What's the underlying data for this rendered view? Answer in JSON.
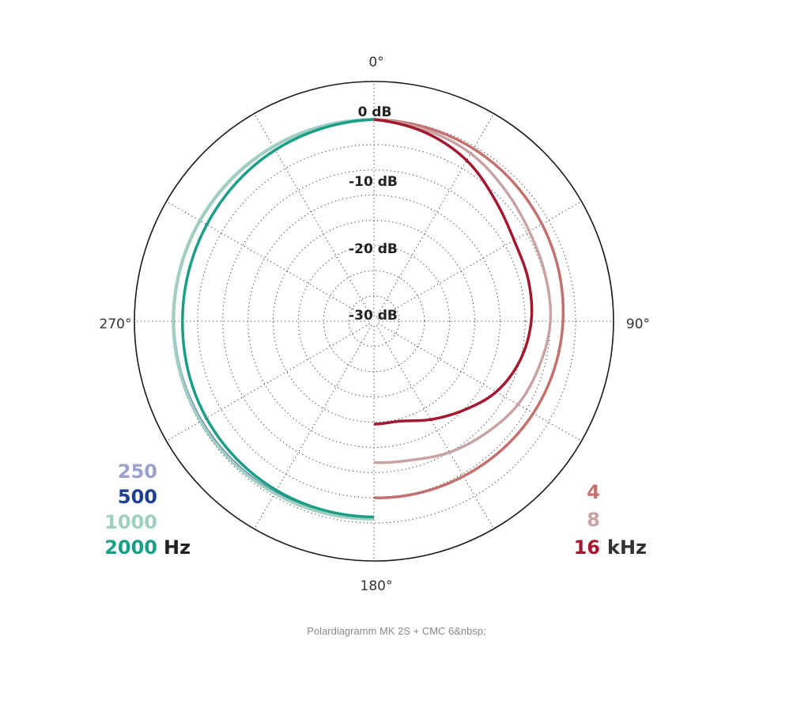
{
  "caption": "Polardiagramm MK 2S + CMC 6&nbsp;",
  "chart_data": {
    "type": "polar",
    "angle_labels": [
      "0°",
      "90°",
      "180°",
      "270°"
    ],
    "radial_labels": [
      "0 dB",
      "-10 dB",
      "-20 dB",
      "-30 dB"
    ],
    "rlim": [
      -40,
      0
    ],
    "grid": true,
    "legend_left": {
      "unit": "Hz",
      "entries": [
        {
          "label": "250",
          "color": "#9ba0cf"
        },
        {
          "label": "500",
          "color": "#1f3f8f"
        },
        {
          "label": "1000",
          "color": "#9fcfc0"
        },
        {
          "label": "2000",
          "color": "#1a9f86"
        }
      ]
    },
    "legend_right": {
      "unit": "kHz",
      "entries": [
        {
          "label": "4",
          "color": "#c4706f"
        },
        {
          "label": "8",
          "color": "#c9a3a3"
        },
        {
          "label": "16",
          "color": "#a3182f"
        }
      ]
    },
    "series": [
      {
        "name": "250",
        "color": "#9ba0cf",
        "width": 3,
        "side": "left",
        "points": [
          [
            180,
            -1.0
          ],
          [
            210,
            -0.8
          ],
          [
            240,
            -0.5
          ],
          [
            270,
            -0.3
          ],
          [
            300,
            -0.2
          ],
          [
            330,
            -0.1
          ],
          [
            360,
            0
          ]
        ]
      },
      {
        "name": "500",
        "color": "#1f3f8f",
        "width": 2.5,
        "side": "left",
        "points": [
          [
            180,
            -1.0
          ],
          [
            210,
            -0.8
          ],
          [
            240,
            -0.5
          ],
          [
            270,
            -0.3
          ],
          [
            300,
            -0.2
          ],
          [
            330,
            -0.1
          ],
          [
            360,
            0
          ]
        ]
      },
      {
        "name": "1000",
        "color": "#9fcfc0",
        "width": 4,
        "side": "left",
        "points": [
          [
            180,
            -0.8
          ],
          [
            210,
            -0.6
          ],
          [
            240,
            -0.3
          ],
          [
            270,
            -0.2
          ],
          [
            300,
            -0.1
          ],
          [
            330,
            0
          ],
          [
            360,
            0
          ]
        ]
      },
      {
        "name": "2000",
        "color": "#1a9f86",
        "width": 3.5,
        "side": "left",
        "points": [
          [
            180,
            -1.2
          ],
          [
            210,
            -1.3
          ],
          [
            240,
            -1.6
          ],
          [
            270,
            -2.0
          ],
          [
            300,
            -1.7
          ],
          [
            330,
            -0.8
          ],
          [
            360,
            0
          ]
        ]
      },
      {
        "name": "4",
        "color": "#c4706f",
        "width": 3.5,
        "side": "right",
        "points": [
          [
            0,
            0
          ],
          [
            30,
            -0.5
          ],
          [
            60,
            -1.5
          ],
          [
            90,
            -2.5
          ],
          [
            120,
            -3.5
          ],
          [
            150,
            -4.5
          ],
          [
            180,
            -5.0
          ]
        ]
      },
      {
        "name": "8",
        "color": "#c9a3a3",
        "width": 3.5,
        "side": "right",
        "points": [
          [
            0,
            0
          ],
          [
            15,
            -0.7
          ],
          [
            30,
            -1.6
          ],
          [
            45,
            -3.2
          ],
          [
            60,
            -4.4
          ],
          [
            75,
            -4.8
          ],
          [
            90,
            -5.0
          ],
          [
            105,
            -6.0
          ],
          [
            120,
            -7.0
          ],
          [
            135,
            -8.6
          ],
          [
            150,
            -10.0
          ],
          [
            165,
            -11.5
          ],
          [
            180,
            -12.0
          ]
        ]
      },
      {
        "name": "16",
        "color": "#a3182f",
        "width": 3.5,
        "side": "right",
        "points": [
          [
            0,
            0
          ],
          [
            15,
            -1.2
          ],
          [
            30,
            -3.2
          ],
          [
            45,
            -6.0
          ],
          [
            60,
            -7.9
          ],
          [
            75,
            -8.3
          ],
          [
            90,
            -8.8
          ],
          [
            105,
            -10.0
          ],
          [
            120,
            -12.0
          ],
          [
            135,
            -15.0
          ],
          [
            150,
            -17.5
          ],
          [
            165,
            -19.5
          ],
          [
            180,
            -19.6
          ]
        ]
      }
    ]
  }
}
